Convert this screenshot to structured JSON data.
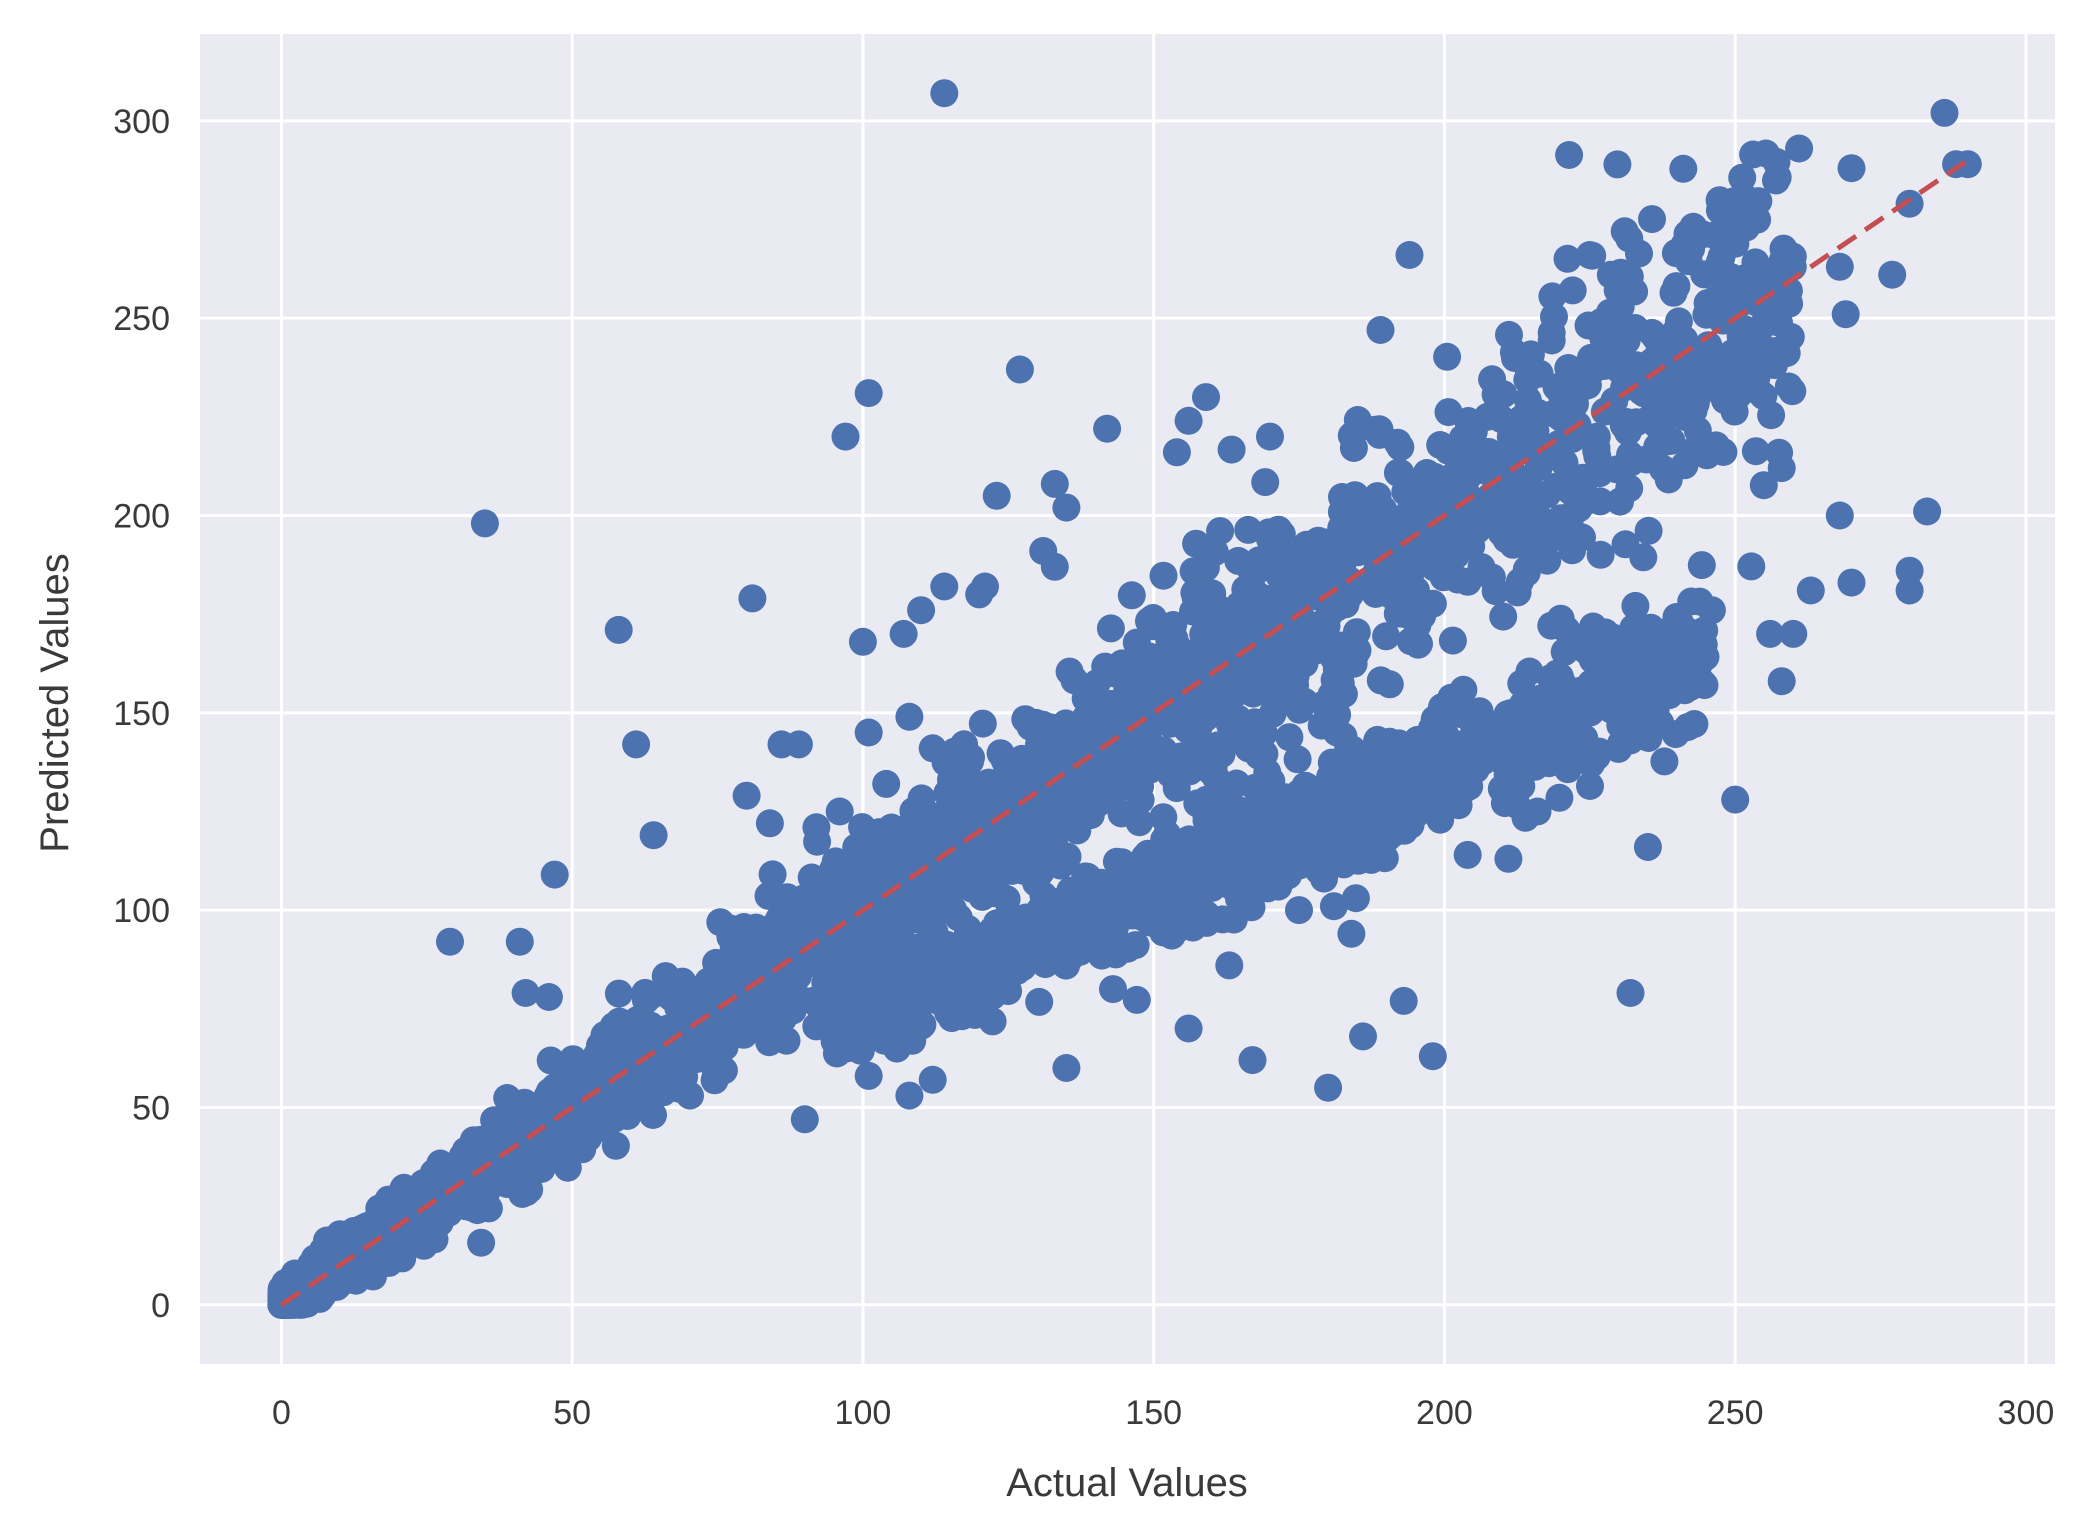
{
  "chart_data": {
    "type": "scatter",
    "title": "",
    "xlabel": "Actual Values",
    "ylabel": "Predicted Values",
    "xlim": [
      -14,
      305
    ],
    "ylim": [
      -15,
      322
    ],
    "x_ticks": [
      0,
      50,
      100,
      150,
      200,
      250,
      300
    ],
    "y_ticks": [
      0,
      50,
      100,
      150,
      200,
      250,
      300
    ],
    "x_tick_labels": [
      "0",
      "50",
      "100",
      "150",
      "200",
      "250",
      "300"
    ],
    "y_tick_labels": [
      "0",
      "50",
      "100",
      "150",
      "200",
      "250",
      "300"
    ],
    "grid": true,
    "legend": "none",
    "colors": {
      "points": "#4c72b0",
      "reference_line": "#c44e52",
      "plot_background": "#eaeaf2",
      "grid": "#ffffff"
    },
    "reference_line": {
      "style": "dashed",
      "from": [
        0,
        0
      ],
      "to": [
        290,
        290
      ]
    },
    "series": [
      {
        "points": [
          [
            114,
            307
          ],
          [
            286,
            302
          ],
          [
            35,
            198
          ],
          [
            261,
            293
          ],
          [
            270,
            288
          ],
          [
            290,
            289
          ],
          [
            288,
            289
          ],
          [
            280,
            279
          ],
          [
            277,
            261
          ],
          [
            268,
            263
          ],
          [
            269,
            251
          ],
          [
            283,
            201
          ],
          [
            268,
            200
          ],
          [
            270,
            183
          ],
          [
            280,
            186
          ],
          [
            280,
            181
          ],
          [
            263,
            181
          ],
          [
            258,
            212
          ],
          [
            260,
            170
          ],
          [
            250,
            128
          ],
          [
            258,
            158
          ],
          [
            256,
            170
          ],
          [
            246,
            176
          ],
          [
            244,
            164
          ],
          [
            240,
            167
          ],
          [
            232,
            79
          ],
          [
            235,
            116
          ],
          [
            232,
            143
          ],
          [
            204,
            114
          ],
          [
            211,
            113
          ],
          [
            216,
            125
          ],
          [
            221,
            171
          ],
          [
            194,
            266
          ],
          [
            189,
            247
          ],
          [
            225,
            266
          ],
          [
            231,
            272
          ],
          [
            127,
            237
          ],
          [
            101,
            231
          ],
          [
            97,
            220
          ],
          [
            142,
            222
          ],
          [
            170,
            220
          ],
          [
            159,
            230
          ],
          [
            156,
            224
          ],
          [
            154,
            216
          ],
          [
            123,
            205
          ],
          [
            133,
            208
          ],
          [
            135,
            202
          ],
          [
            131,
            191
          ],
          [
            133,
            187
          ],
          [
            114,
            182
          ],
          [
            120,
            180
          ],
          [
            121,
            182
          ],
          [
            110,
            176
          ],
          [
            107,
            170
          ],
          [
            100,
            168
          ],
          [
            81,
            179
          ],
          [
            58,
            171
          ],
          [
            61,
            142
          ],
          [
            64,
            119
          ],
          [
            47,
            109
          ],
          [
            29,
            92
          ],
          [
            41,
            92
          ],
          [
            42,
            79
          ],
          [
            46,
            78
          ],
          [
            108,
            53
          ],
          [
            112,
            57
          ],
          [
            101,
            58
          ],
          [
            90,
            47
          ],
          [
            135,
            60
          ],
          [
            156,
            70
          ],
          [
            167,
            62
          ],
          [
            180,
            55
          ],
          [
            186,
            68
          ],
          [
            193,
            77
          ],
          [
            198,
            63
          ],
          [
            181,
            101
          ],
          [
            184,
            94
          ],
          [
            143,
            80
          ],
          [
            163,
            86
          ],
          [
            175,
            100
          ],
          [
            92,
            121
          ],
          [
            96,
            125
          ],
          [
            104,
            132
          ],
          [
            112,
            141
          ],
          [
            108,
            149
          ],
          [
            101,
            145
          ],
          [
            89,
            142
          ],
          [
            86,
            142
          ],
          [
            80,
            129
          ],
          [
            84,
            122
          ]
        ],
        "distribution": [
          {
            "label": "main band along diagonal",
            "x_range": [
              0,
              260
            ],
            "center_slope": 1.0,
            "spread": 0.08
          },
          {
            "label": "lower branch",
            "x_range": [
              95,
              245
            ],
            "slope": 0.63,
            "spread": 0.07
          }
        ]
      }
    ]
  }
}
